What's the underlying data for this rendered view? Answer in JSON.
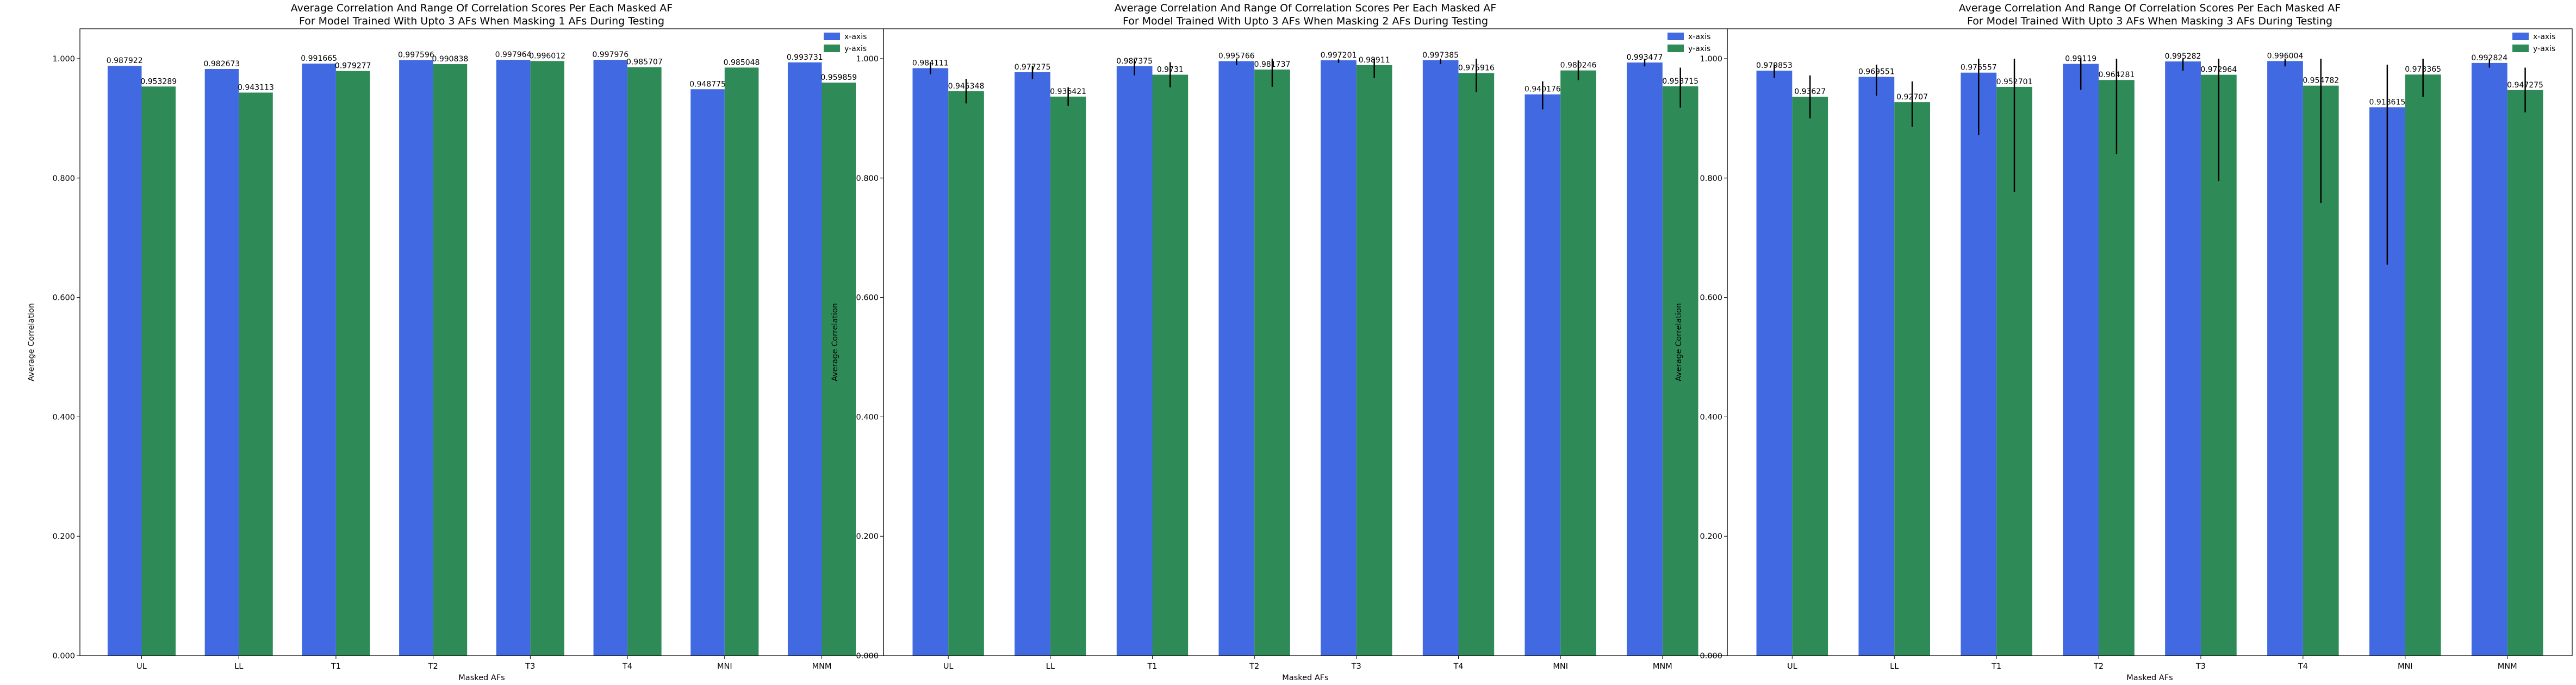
{
  "chart_data": [
    {
      "type": "bar",
      "title": "Average Correlation And Range Of Correlation Scores Per Each Masked AF",
      "subtitle": "For Model Trained With Upto 3 AFs When Masking 1 AFs During Testing",
      "xlabel": "Masked AFs",
      "ylabel": "Average Correlation",
      "ylim": [
        0,
        1.05
      ],
      "yticks": [
        "0.000",
        "0.200",
        "0.400",
        "0.600",
        "0.800",
        "1.000"
      ],
      "categories": [
        "UL",
        "LL",
        "T1",
        "T2",
        "T3",
        "T4",
        "MNI",
        "MNM"
      ],
      "legend_position": "top-right",
      "series": [
        {
          "name": "x-axis",
          "color": "#4169e1",
          "values": [
            0.987922,
            0.982673,
            0.991665,
            0.997596,
            0.997964,
            0.997976,
            0.948775,
            0.993731
          ],
          "labels": [
            "0.987922",
            "0.982673",
            "0.991665",
            "0.997596",
            "0.997964",
            "0.997976",
            "0.948775",
            "0.993731"
          ],
          "error_ranges": [
            null,
            null,
            null,
            null,
            null,
            null,
            null,
            null
          ]
        },
        {
          "name": "y-axis",
          "color": "#2e8b57",
          "values": [
            0.953289,
            0.943113,
            0.979277,
            0.990838,
            0.996012,
            0.985707,
            0.985048,
            0.959859
          ],
          "labels": [
            "0.953289",
            "0.943113",
            "0.979277",
            "0.990838",
            "0.996012",
            "0.985707",
            "0.985048",
            "0.959859"
          ],
          "error_ranges": [
            null,
            null,
            null,
            null,
            null,
            null,
            null,
            null
          ]
        }
      ]
    },
    {
      "type": "bar",
      "title": "Average Correlation And Range Of Correlation Scores Per Each Masked AF",
      "subtitle": "For Model Trained With Upto 3 AFs When Masking 2 AFs During Testing",
      "xlabel": "Masked AFs",
      "ylabel": "Average Correlation",
      "ylim": [
        0,
        1.05
      ],
      "yticks": [
        "0.000",
        "0.200",
        "0.400",
        "0.600",
        "0.800",
        "1.000"
      ],
      "categories": [
        "UL",
        "LL",
        "T1",
        "T2",
        "T3",
        "T4",
        "MNI",
        "MNM"
      ],
      "legend_position": "top-right",
      "series": [
        {
          "name": "x-axis",
          "color": "#4169e1",
          "values": [
            0.984111,
            0.977275,
            0.987375,
            0.995766,
            0.997201,
            0.997385,
            0.940176,
            0.993477
          ],
          "labels": [
            "0.984111",
            "0.977275",
            "0.987375",
            "0.995766",
            "0.997201",
            "0.997385",
            "0.940176",
            "0.993477"
          ],
          "error_ranges": [
            [
              0.974,
              0.994
            ],
            [
              0.966,
              0.988
            ],
            [
              0.972,
              0.999
            ],
            [
              0.989,
              1.0
            ],
            [
              0.993,
              1.0
            ],
            [
              0.991,
              1.0
            ],
            [
              0.915,
              0.962
            ],
            [
              0.987,
              1.0
            ]
          ]
        },
        {
          "name": "y-axis",
          "color": "#2e8b57",
          "values": [
            0.945348,
            0.936421,
            0.9731,
            0.981737,
            0.98911,
            0.975916,
            0.980246,
            0.953715
          ],
          "labels": [
            "0.945348",
            "0.936421",
            "0.9731",
            "0.981737",
            "0.98911",
            "0.975916",
            "0.980246",
            "0.953715"
          ],
          "error_ranges": [
            [
              0.925,
              0.966
            ],
            [
              0.921,
              0.952
            ],
            [
              0.952,
              0.994
            ],
            [
              0.953,
              1.0
            ],
            [
              0.968,
              1.0
            ],
            [
              0.944,
              1.0
            ],
            [
              0.964,
              0.997
            ],
            [
              0.918,
              0.985
            ]
          ]
        }
      ]
    },
    {
      "type": "bar",
      "title": "Average Correlation And Range Of Correlation Scores Per Each Masked AF",
      "subtitle": "For Model Trained With Upto 3 AFs When Masking 3 AFs During Testing",
      "xlabel": "Masked AFs",
      "ylabel": "Average Correlation",
      "ylim": [
        0,
        1.05
      ],
      "yticks": [
        "0.000",
        "0.200",
        "0.400",
        "0.600",
        "0.800",
        "1.000"
      ],
      "categories": [
        "UL",
        "LL",
        "T1",
        "T2",
        "T3",
        "T4",
        "MNI",
        "MNM"
      ],
      "legend_position": "top-right",
      "series": [
        {
          "name": "x-axis",
          "color": "#4169e1",
          "values": [
            0.979853,
            0.969551,
            0.976557,
            0.99119,
            0.995282,
            0.996004,
            0.918615,
            0.992824
          ],
          "labels": [
            "0.979853",
            "0.969551",
            "0.976557",
            "0.99119",
            "0.995282",
            "0.996004",
            "0.918615",
            "0.992824"
          ],
          "error_ranges": [
            [
              0.968,
              0.99
            ],
            [
              0.938,
              0.99
            ],
            [
              0.872,
              1.0
            ],
            [
              0.948,
              1.0
            ],
            [
              0.98,
              1.0
            ],
            [
              0.987,
              1.0
            ],
            [
              0.655,
              0.99
            ],
            [
              0.985,
              1.0
            ]
          ]
        },
        {
          "name": "y-axis",
          "color": "#2e8b57",
          "values": [
            0.93627,
            0.92707,
            0.952701,
            0.964281,
            0.972964,
            0.954782,
            0.973365,
            0.947275
          ],
          "labels": [
            "0.93627",
            "0.92707",
            "0.952701",
            "0.964281",
            "0.972964",
            "0.954782",
            "0.973365",
            "0.947275"
          ],
          "error_ranges": [
            [
              0.9,
              0.972
            ],
            [
              0.886,
              0.962
            ],
            [
              0.777,
              1.0
            ],
            [
              0.84,
              1.0
            ],
            [
              0.795,
              1.0
            ],
            [
              0.758,
              1.0
            ],
            [
              0.936,
              1.0
            ],
            [
              0.91,
              0.985
            ]
          ]
        }
      ]
    }
  ]
}
